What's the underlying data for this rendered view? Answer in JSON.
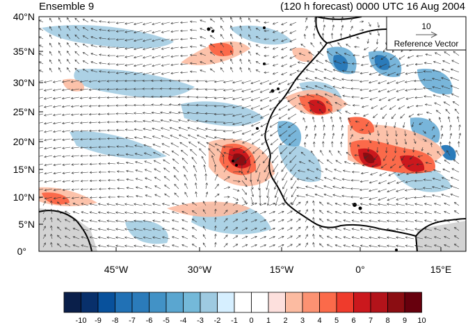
{
  "titles": {
    "left": "Ensemble 9",
    "right": "(120 h forecast) 0000 UTC 16 Aug 2004"
  },
  "map": {
    "lat_labels": [
      "40°N",
      "35°N",
      "30°N",
      "25°N",
      "20°N",
      "15°N",
      "10°N",
      "5°N",
      "0°"
    ],
    "lon_labels": [
      "45°W",
      "30°W",
      "15°W",
      "0°",
      "15°E"
    ],
    "lon_range": [
      -58,
      19
    ],
    "lat_range": [
      0,
      40
    ],
    "land_fill_color": "#d3d3d3"
  },
  "reference_vector": {
    "magnitude": "10",
    "label": "Reference Vector"
  },
  "colorbar": {
    "tick_labels": [
      "-10",
      "-9",
      "-8",
      "-7",
      "-6",
      "-5",
      "-4",
      "-3",
      "-2",
      "-1",
      "0",
      "1",
      "2",
      "3",
      "4",
      "5",
      "6",
      "7",
      "8",
      "9",
      "10"
    ],
    "colors": [
      "#0a1f4a",
      "#08306b",
      "#08519c",
      "#2171b5",
      "#2b7bba",
      "#4292c6",
      "#5aa6d0",
      "#74b9d9",
      "#9ecae1",
      "#d6efff",
      "#ffffff",
      "#ffffff",
      "#fde0dd",
      "#fcbba1",
      "#fc9272",
      "#fb6a4a",
      "#ef3b2c",
      "#cb181d",
      "#b3131a",
      "#8b0d12",
      "#67000d"
    ]
  }
}
